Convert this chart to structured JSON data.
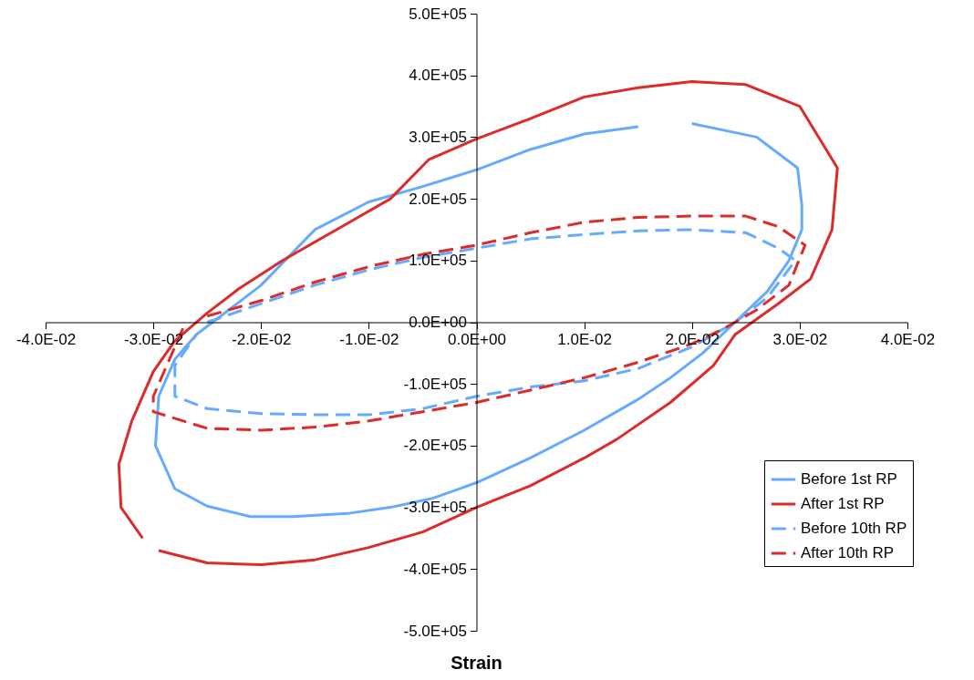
{
  "chart_data": {
    "type": "line",
    "xlabel": "Strain",
    "legend": "bottom right",
    "grid": false,
    "xlim": [
      -0.04,
      0.04
    ],
    "xticks": [
      {
        "value": -0.04,
        "label": "-4.0E-02"
      },
      {
        "value": -0.03,
        "label": "-3.0E-02"
      },
      {
        "value": -0.02,
        "label": "-2.0E-02"
      },
      {
        "value": -0.01,
        "label": "-1.0E-02"
      },
      {
        "value": 0,
        "label": "0.0E+00"
      },
      {
        "value": 0.01,
        "label": "1.0E-02"
      },
      {
        "value": 0.02,
        "label": "2.0E-02"
      },
      {
        "value": 0.03,
        "label": "3.0E-02"
      },
      {
        "value": 0.04,
        "label": "4.0E-02"
      }
    ],
    "ylim": [
      -500000,
      500000
    ],
    "yticks": [
      {
        "value": -500000,
        "label": "-5.0E+05"
      },
      {
        "value": -400000,
        "label": "-4.0E+05"
      },
      {
        "value": -300000,
        "label": "-3.0E+05"
      },
      {
        "value": -200000,
        "label": "-2.0E+05"
      },
      {
        "value": -100000,
        "label": "-1.0E+05"
      },
      {
        "value": 0,
        "label": "0.0E+00"
      },
      {
        "value": 100000,
        "label": "1.0E+05"
      },
      {
        "value": 200000,
        "label": "2.0E+05"
      },
      {
        "value": 300000,
        "label": "3.0E+05"
      },
      {
        "value": 400000,
        "label": "4.0E+05"
      },
      {
        "value": 500000,
        "label": "5.0E+05"
      }
    ],
    "series": [
      {
        "name": "Before 1st RP",
        "color": "#66aaff",
        "line_style": "solid",
        "x": [
          0.015,
          0.01,
          0.005,
          0,
          -0.005,
          -0.01,
          -0.015,
          -0.02,
          -0.023,
          -0.026,
          -0.028,
          -0.0295,
          -0.0298,
          -0.028,
          -0.025,
          -0.021,
          -0.017,
          -0.012,
          -0.008,
          -0.004,
          0,
          0.005,
          0.01,
          0.015,
          0.018,
          0.021,
          0.024,
          0.027,
          0.029,
          0.0302,
          0.0302,
          0.0298,
          0.026,
          0.02
        ],
        "values": [
          317000,
          305000,
          280000,
          247000,
          220000,
          195000,
          150000,
          60000,
          20000,
          -20000,
          -60000,
          -120000,
          -200000,
          -270000,
          -298000,
          -315000,
          -315000,
          -310000,
          -300000,
          -285000,
          -260000,
          -220000,
          -175000,
          -125000,
          -90000,
          -50000,
          0,
          50000,
          100000,
          150000,
          190000,
          250000,
          300000,
          322000
        ]
      },
      {
        "name": "After 1st RP",
        "color": "#dd2b2b",
        "line_style": "solid",
        "x": [
          -0.031,
          -0.033,
          -0.0332,
          -0.032,
          -0.03,
          -0.028,
          -0.025,
          -0.022,
          -0.018,
          -0.013,
          -0.008,
          -0.0044,
          0,
          0.005,
          0.01,
          0.015,
          0.02,
          0.025,
          0.03,
          0.0335,
          0.033,
          0.031,
          0.028,
          0.024,
          0.022,
          0.018,
          0.013,
          0.01,
          0.005,
          0,
          -0.005,
          -0.01,
          -0.015,
          -0.02,
          -0.025,
          -0.0295
        ],
        "values": [
          -350000,
          -300000,
          -230000,
          -160000,
          -80000,
          -30000,
          15000,
          55000,
          100000,
          150000,
          200000,
          264000,
          297000,
          330000,
          365000,
          380000,
          390000,
          385000,
          350000,
          250000,
          150000,
          70000,
          30000,
          -20000,
          -70000,
          -130000,
          -190000,
          -220000,
          -265000,
          -300000,
          -340000,
          -365000,
          -385000,
          -393000,
          -390000,
          -370000
        ]
      },
      {
        "name": "Before 10th RP",
        "color": "#66aaff",
        "line_style": "dashed",
        "x": [
          -0.025,
          -0.02,
          -0.015,
          -0.01,
          -0.005,
          0,
          0.005,
          0.01,
          0.015,
          0.02,
          0.025,
          0.028,
          0.0296,
          0.027,
          0.024,
          0.02,
          0.015,
          0.01,
          0.005,
          0,
          -0.005,
          -0.01,
          -0.015,
          -0.02,
          -0.025,
          -0.028,
          -0.028,
          -0.026
        ],
        "values": [
          0,
          30000,
          60000,
          85000,
          105000,
          120000,
          135000,
          142000,
          148000,
          150000,
          145000,
          120000,
          100000,
          40000,
          0,
          -40000,
          -75000,
          -95000,
          -105000,
          -120000,
          -140000,
          -150000,
          -150000,
          -148000,
          -140000,
          -120000,
          -70000,
          -20000
        ]
      },
      {
        "name": "After 10th RP",
        "color": "#dd2b2b",
        "line_style": "dashed",
        "x": [
          -0.025,
          -0.02,
          -0.015,
          -0.01,
          -0.005,
          0,
          0.005,
          0.01,
          0.015,
          0.02,
          0.025,
          0.028,
          0.0305,
          0.029,
          0.026,
          0.023,
          0.02,
          0.015,
          0.01,
          0.005,
          0,
          -0.005,
          -0.01,
          -0.015,
          -0.02,
          -0.025,
          -0.03,
          -0.03,
          -0.028,
          -0.027
        ],
        "values": [
          10000,
          35000,
          65000,
          90000,
          110000,
          125000,
          145000,
          162000,
          170000,
          172000,
          172000,
          155000,
          125000,
          60000,
          20000,
          -10000,
          -35000,
          -65000,
          -90000,
          -110000,
          -130000,
          -145000,
          -160000,
          -170000,
          -175000,
          -172000,
          -145000,
          -120000,
          -40000,
          0
        ]
      }
    ]
  }
}
